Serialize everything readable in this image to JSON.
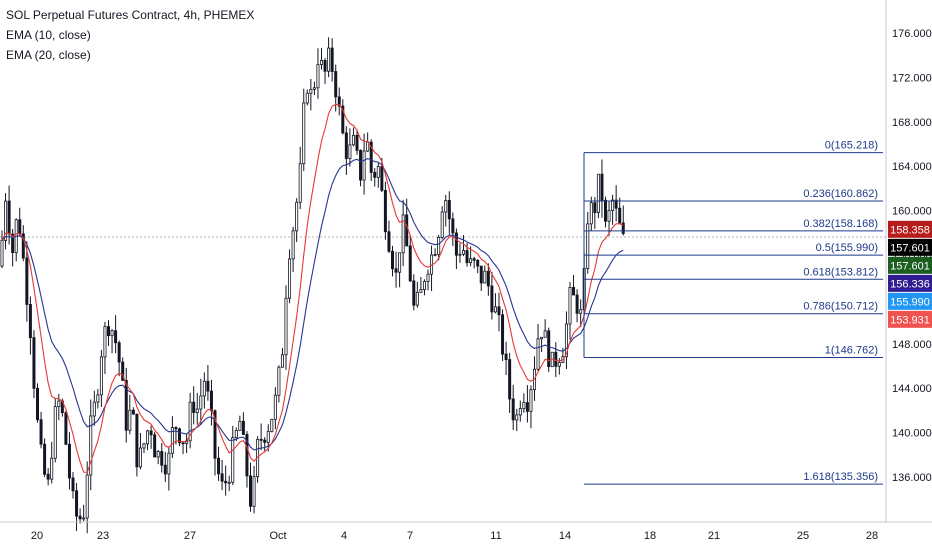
{
  "legend": {
    "title": "SOL Perpetual Futures Contract, 4h, PHEMEX",
    "ema1": "EMA (10, close)",
    "ema2": "EMA (20, close)"
  },
  "chart_data": {
    "type": "candlestick",
    "ylim": [
      132,
      178
    ],
    "price_ticks": [
      "176.000",
      "172.000",
      "168.000",
      "164.000",
      "160.000",
      "156.000",
      "152.000",
      "148.000",
      "144.000",
      "140.000",
      "136.000"
    ],
    "time_ticks": [
      "20",
      "23",
      "27",
      "Oct",
      "4",
      "7",
      "11",
      "14",
      "18",
      "21",
      "25",
      "28"
    ],
    "fib_levels": [
      {
        "label": "0(165.218)",
        "price": 165.218
      },
      {
        "label": "0.236(160.862)",
        "price": 160.862
      },
      {
        "label": "0.382(158.168)",
        "price": 158.168
      },
      {
        "label": "0.5(155.990)",
        "price": 155.99
      },
      {
        "label": "0.618(153.812)",
        "price": 153.812
      },
      {
        "label": "0.786(150.712)",
        "price": 150.712
      },
      {
        "label": "1(146.762)",
        "price": 146.762
      },
      {
        "label": "1.618(135.356)",
        "price": 135.356
      }
    ],
    "badges": [
      {
        "text": "158.358",
        "price": 158.358,
        "color": "#b71c1c"
      },
      {
        "text": "157.601",
        "price": 157.601,
        "color": "#000000"
      },
      {
        "text": "157.601",
        "price": 157.601,
        "color": "#1b5e20"
      },
      {
        "text": "156.336",
        "price": 156.336,
        "color": "#311b92"
      },
      {
        "text": "155.990",
        "price": 155.99,
        "color": "#2196f3"
      },
      {
        "text": "153.931",
        "price": 153.931,
        "color": "#ef5350"
      }
    ],
    "colors": {
      "ema10": "#e53935",
      "ema20": "#283593",
      "fib": "#1e3a8a",
      "candle": "#131722"
    }
  }
}
